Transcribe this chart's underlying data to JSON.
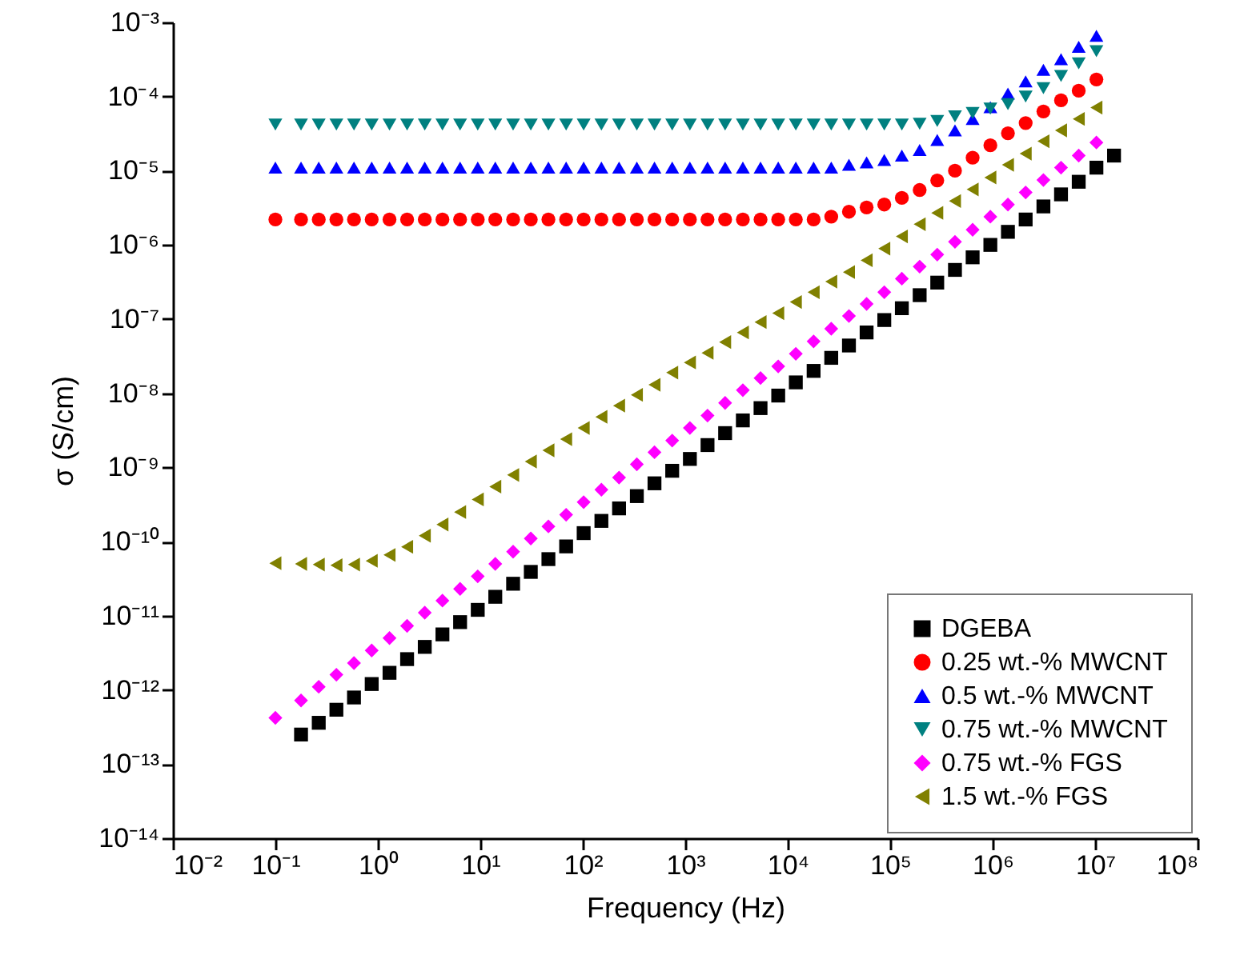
{
  "chart_data": {
    "type": "scatter",
    "xlabel": "Frequency (Hz)",
    "ylabel": "σ (S/cm)",
    "log": "xy",
    "grid": false,
    "legend": "bottom right",
    "xlim": [
      0.01,
      100000000
    ],
    "ylim": [
      1e-14,
      0.001
    ],
    "xticks": [
      {
        "value": 0.01,
        "label": "10⁻²"
      },
      {
        "value": 0.1,
        "label": "10⁻¹"
      },
      {
        "value": 1,
        "label": "10⁰"
      },
      {
        "value": 10,
        "label": "10¹"
      },
      {
        "value": 100,
        "label": "10²"
      },
      {
        "value": 1000,
        "label": "10³"
      },
      {
        "value": 10000,
        "label": "10⁴"
      },
      {
        "value": 100000,
        "label": "10⁵"
      },
      {
        "value": 1000000,
        "label": "10⁶"
      },
      {
        "value": 10000000,
        "label": "10⁷"
      },
      {
        "value": 100000000,
        "label": "10⁸"
      }
    ],
    "yticks": [
      {
        "value": 1e-14,
        "label": "10⁻¹⁴"
      },
      {
        "value": 1e-13,
        "label": "10⁻¹³"
      },
      {
        "value": 1e-12,
        "label": "10⁻¹²"
      },
      {
        "value": 1e-11,
        "label": "10⁻¹¹"
      },
      {
        "value": 1e-10,
        "label": "10⁻¹⁰"
      },
      {
        "value": 1e-09,
        "label": "10⁻⁹"
      },
      {
        "value": 1e-08,
        "label": "10⁻⁸"
      },
      {
        "value": 1e-07,
        "label": "10⁻⁷"
      },
      {
        "value": 1e-06,
        "label": "10⁻⁶"
      },
      {
        "value": 1e-05,
        "label": "10⁻⁵"
      },
      {
        "value": 0.0001,
        "label": "10⁻⁴"
      },
      {
        "value": 0.001,
        "label": "10⁻³"
      }
    ],
    "x": [
      0.1,
      0.178,
      0.265,
      0.394,
      0.585,
      0.871,
      1.3,
      1.93,
      2.87,
      4.27,
      6.35,
      9.44,
      14.0,
      20.9,
      31.1,
      46.2,
      68.8,
      102,
      152,
      226,
      337,
      501,
      746,
      1110,
      1650,
      2450,
      3650,
      5430,
      8080,
      12000,
      17900,
      26600,
      39600,
      58900,
      87600,
      130000,
      194000,
      288000,
      429000,
      638000,
      950000,
      1410000,
      2100000,
      3130000,
      4650000,
      6920000,
      10300000,
      15300000
    ],
    "series": [
      {
        "name": "DGEBA",
        "color": "#000000",
        "marker": "square",
        "values": [
          null,
          2.5e-13,
          3.6e-13,
          5.4e-13,
          7.9e-13,
          1.2e-12,
          1.7e-12,
          2.6e-12,
          3.8e-12,
          5.6e-12,
          8.2e-12,
          1.2e-11,
          1.8e-11,
          2.7e-11,
          3.9e-11,
          5.8e-11,
          8.6e-11,
          1.3e-10,
          1.9e-10,
          2.8e-10,
          4.1e-10,
          6.1e-10,
          9e-10,
          1.3e-09,
          2e-09,
          2.9e-09,
          4.3e-09,
          6.3e-09,
          9.3e-09,
          1.4e-08,
          2e-08,
          3e-08,
          4.4e-08,
          6.6e-08,
          9.7e-08,
          1.4e-07,
          2.1e-07,
          3.1e-07,
          4.6e-07,
          6.8e-07,
          1e-06,
          1.5e-06,
          2.2e-06,
          3.3e-06,
          4.8e-06,
          7.1e-06,
          1.1e-05,
          1.6e-05
        ]
      },
      {
        "name": "0.25 wt.-% MWCNT",
        "color": "#ff0000",
        "marker": "circle",
        "values": [
          2.2e-06,
          2.2e-06,
          2.2e-06,
          2.2e-06,
          2.2e-06,
          2.2e-06,
          2.2e-06,
          2.2e-06,
          2.2e-06,
          2.2e-06,
          2.2e-06,
          2.2e-06,
          2.2e-06,
          2.2e-06,
          2.2e-06,
          2.2e-06,
          2.2e-06,
          2.2e-06,
          2.2e-06,
          2.2e-06,
          2.2e-06,
          2.2e-06,
          2.2e-06,
          2.2e-06,
          2.2e-06,
          2.2e-06,
          2.2e-06,
          2.2e-06,
          2.2e-06,
          2.2e-06,
          2.2e-06,
          2.4e-06,
          2.8e-06,
          3.2e-06,
          3.5e-06,
          4.3e-06,
          5.5e-06,
          7.4e-06,
          1e-05,
          1.5e-05,
          2.2e-05,
          3.2e-05,
          4.4e-05,
          6.3e-05,
          8.9e-05,
          0.00012,
          0.00017,
          null
        ]
      },
      {
        "name": "0.5 wt.-% MWCNT",
        "color": "#0000ff",
        "marker": "triangle",
        "values": [
          1.1e-05,
          1.1e-05,
          1.1e-05,
          1.1e-05,
          1.1e-05,
          1.1e-05,
          1.1e-05,
          1.1e-05,
          1.1e-05,
          1.1e-05,
          1.1e-05,
          1.1e-05,
          1.1e-05,
          1.1e-05,
          1.1e-05,
          1.1e-05,
          1.1e-05,
          1.1e-05,
          1.1e-05,
          1.1e-05,
          1.1e-05,
          1.1e-05,
          1.1e-05,
          1.1e-05,
          1.1e-05,
          1.1e-05,
          1.1e-05,
          1.1e-05,
          1.1e-05,
          1.1e-05,
          1.1e-05,
          1.1e-05,
          1.2e-05,
          1.3e-05,
          1.4e-05,
          1.6e-05,
          1.9e-05,
          2.6e-05,
          3.5e-05,
          5e-05,
          7.2e-05,
          0.00011,
          0.00016,
          0.00023,
          0.00032,
          0.00047,
          0.00066,
          null
        ]
      },
      {
        "name": "0.75 wt.-% MWCNT",
        "color": "#008080",
        "marker": "triangle-down",
        "values": [
          4.2e-05,
          4.2e-05,
          4.2e-05,
          4.2e-05,
          4.2e-05,
          4.2e-05,
          4.2e-05,
          4.2e-05,
          4.2e-05,
          4.2e-05,
          4.2e-05,
          4.2e-05,
          4.2e-05,
          4.2e-05,
          4.2e-05,
          4.2e-05,
          4.2e-05,
          4.2e-05,
          4.2e-05,
          4.2e-05,
          4.2e-05,
          4.2e-05,
          4.2e-05,
          4.2e-05,
          4.2e-05,
          4.2e-05,
          4.2e-05,
          4.2e-05,
          4.2e-05,
          4.2e-05,
          4.2e-05,
          4.2e-05,
          4.2e-05,
          4.2e-05,
          4.2e-05,
          4.2e-05,
          4.3e-05,
          4.7e-05,
          5.4e-05,
          6e-05,
          6.9e-05,
          7.9e-05,
          0.0001,
          0.00013,
          0.00019,
          0.00028,
          0.00041,
          null
        ]
      },
      {
        "name": "0.75 wt.-% FGS",
        "color": "#ff00ff",
        "marker": "diamond",
        "values": [
          4.2e-13,
          7.2e-13,
          1.1e-12,
          1.6e-12,
          2.3e-12,
          3.4e-12,
          5e-12,
          7.3e-12,
          1.1e-11,
          1.6e-11,
          2.3e-11,
          3.4e-11,
          5e-11,
          7.3e-11,
          1.1e-10,
          1.6e-10,
          2.3e-10,
          3.4e-10,
          5e-10,
          7.3e-10,
          1.1e-09,
          1.6e-09,
          2.3e-09,
          3.4e-09,
          5e-09,
          7.4e-09,
          1.1e-08,
          1.6e-08,
          2.3e-08,
          3.4e-08,
          5e-08,
          7.4e-08,
          1.1e-07,
          1.6e-07,
          2.3e-07,
          3.5e-07,
          5.1e-07,
          7.4e-07,
          1.1e-06,
          1.6e-06,
          2.4e-06,
          3.5e-06,
          5.1e-06,
          7.5e-06,
          1.1e-05,
          1.6e-05,
          2.4e-05,
          null
        ]
      },
      {
        "name": "1.5 wt.-% FGS",
        "color": "#808000",
        "marker": "triangle-left",
        "values": [
          5.1e-11,
          5e-11,
          4.9e-11,
          4.8e-11,
          4.9e-11,
          5.5e-11,
          6.6e-11,
          8.5e-11,
          1.2e-10,
          1.7e-10,
          2.5e-10,
          3.7e-10,
          5.5e-10,
          7.9e-10,
          1.2e-09,
          1.7e-09,
          2.4e-09,
          3.4e-09,
          4.8e-09,
          6.8e-09,
          9.5e-09,
          1.3e-08,
          1.9e-08,
          2.6e-08,
          3.5e-08,
          4.9e-08,
          6.6e-08,
          9.1e-08,
          1.2e-07,
          1.7e-07,
          2.3e-07,
          3.2e-07,
          4.3e-07,
          6.2e-07,
          8.9e-07,
          1.3e-06,
          1.9e-06,
          2.7e-06,
          3.9e-06,
          5.6e-06,
          8.1e-06,
          1.2e-05,
          1.7e-05,
          2.5e-05,
          3.5e-05,
          5e-05,
          7.1e-05,
          null
        ]
      }
    ]
  }
}
